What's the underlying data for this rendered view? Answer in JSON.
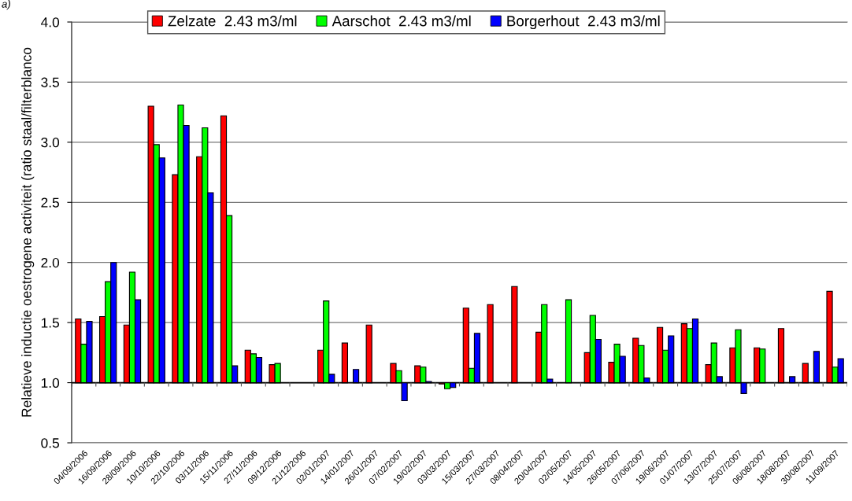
{
  "chart_data": {
    "type": "bar",
    "ylabel": "Relatieve inductie oestrogene activiteit (ratio staal/filterblanco",
    "annotations": [
      "a)"
    ],
    "categories": [
      "04/09/2006",
      "16/09/2006",
      "28/09/2006",
      "10/10/2006",
      "22/10/2006",
      "03/11/2006",
      "15/11/2006",
      "27/11/2006",
      "09/12/2006",
      "21/12/2006",
      "02/01/2007",
      "14/01/2007",
      "26/01/2007",
      "07/02/2007",
      "19/02/2007",
      "03/03/2007",
      "15/03/2007",
      "27/03/2007",
      "08/04/2007",
      "20/04/2007",
      "02/05/2007",
      "14/05/2007",
      "26/05/2007",
      "07/06/2007",
      "19/06/2007",
      "01/07/2007",
      "13/07/2007",
      "25/07/2007",
      "06/08/2007",
      "18/08/2007",
      "30/08/2007",
      "11/09/2007"
    ],
    "series": [
      {
        "name": "Zelzate  2.43 m3/ml",
        "color": "#ff0000",
        "base": [
          1,
          1,
          1,
          1,
          1,
          1,
          1,
          1,
          1,
          null,
          1,
          1,
          1,
          1,
          1,
          1,
          1,
          1,
          1,
          1,
          null,
          1,
          1,
          1,
          1,
          1,
          1,
          1,
          1,
          1,
          1,
          1
        ],
        "values": [
          0.53,
          0.55,
          0.48,
          2.3,
          1.73,
          1.88,
          2.22,
          0.27,
          0.15,
          null,
          0.27,
          0.33,
          0.48,
          0.16,
          0.14,
          -0.01,
          0.62,
          0.65,
          0.8,
          0.42,
          null,
          0.25,
          0.17,
          0.37,
          0.46,
          0.49,
          0.15,
          0.29,
          0.29,
          0.45,
          0.16,
          0.76
        ]
      },
      {
        "name": "Aarschot  2.43 m3/ml",
        "color": "#00ff00",
        "base": [
          1,
          1,
          1,
          1,
          1,
          1,
          1,
          1,
          1,
          null,
          1,
          null,
          null,
          1,
          1,
          1,
          1,
          null,
          null,
          1,
          1,
          1,
          1,
          1,
          1,
          1,
          1,
          1,
          1,
          null,
          null,
          1
        ],
        "values": [
          0.32,
          0.84,
          0.92,
          1.98,
          2.31,
          2.12,
          1.39,
          0.24,
          0.16,
          null,
          0.68,
          null,
          null,
          0.1,
          0.13,
          -0.05,
          0.12,
          null,
          null,
          0.65,
          0.69,
          0.56,
          0.32,
          0.31,
          0.27,
          0.45,
          0.33,
          0.44,
          0.28,
          null,
          null,
          0.13
        ]
      },
      {
        "name": "Borgerhout  2.43 m3/ml",
        "color": "#0000ff",
        "base": [
          1,
          1,
          1,
          1,
          1,
          1,
          1,
          1,
          null,
          null,
          1,
          1,
          null,
          1,
          1,
          1,
          1,
          null,
          null,
          1,
          null,
          1,
          1,
          1,
          1,
          1,
          1,
          1,
          null,
          1,
          1,
          1
        ],
        "values": [
          0.51,
          1.0,
          0.69,
          1.87,
          2.14,
          1.58,
          0.14,
          0.21,
          null,
          null,
          0.07,
          0.11,
          null,
          -0.15,
          0.01,
          -0.04,
          0.41,
          null,
          null,
          0.03,
          null,
          0.36,
          0.22,
          0.04,
          0.39,
          0.53,
          0.05,
          -0.09,
          null,
          0.05,
          0.26,
          0.2
        ]
      }
    ],
    "ylim": [
      0.5,
      4.0
    ],
    "yticks": [
      {
        "value": 0.5,
        "label": "0.5"
      },
      {
        "value": 1,
        "label": "1.0"
      },
      {
        "value": 1.5,
        "label": "1.5"
      },
      {
        "value": 2,
        "label": "2.0"
      },
      {
        "value": 2.5,
        "label": "2.5"
      },
      {
        "value": 3,
        "label": "3.0"
      },
      {
        "value": 3.5,
        "label": "3.5"
      },
      {
        "value": 4,
        "label": "4.0"
      }
    ],
    "ref_lines": [
      {
        "axis": "y",
        "value": 1,
        "color": "#000000"
      }
    ],
    "grid": "y",
    "legend": "top"
  }
}
